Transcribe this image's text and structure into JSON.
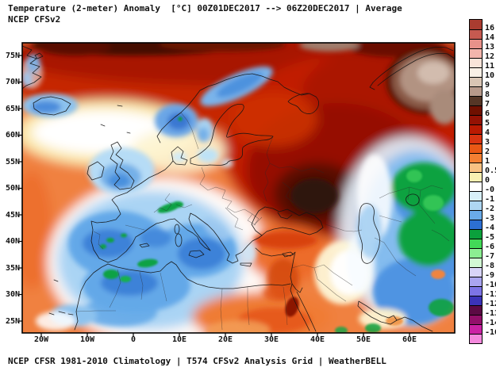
{
  "title": {
    "line1": "Temperature (2-meter) Anomaly  [°C] 00Z01DEC2017 --> 06Z20DEC2017 | Average",
    "line2": "NCEP CFSv2"
  },
  "caption": "NCEP CFSR 1981-2010 Climatology | T574 CFSv2 Analysis Grid | WeatherBELL",
  "colorbar": {
    "unit": "°C",
    "labels": [
      "16",
      "14",
      "13",
      "12",
      "11",
      "10",
      "9",
      "8",
      "7",
      "6",
      "5",
      "4",
      "3",
      "2",
      "1",
      "0.5",
      "0",
      "-0.5",
      "-1",
      "-2",
      "-3",
      "-4",
      "-5",
      "-6",
      "-7",
      "-8",
      "-9",
      "-10",
      "-11",
      "-12",
      "-13",
      "-14",
      "-16"
    ],
    "segments": [
      {
        "color": "#aa3c30",
        "dotted": true
      },
      {
        "color": "#c65a50",
        "dotted": true
      },
      {
        "color": "#e8928a",
        "dotted": false
      },
      {
        "color": "#f2b5ac",
        "dotted": true
      },
      {
        "color": "#f9e4d9",
        "dotted": false
      },
      {
        "color": "#f9f0e6",
        "dotted": true
      },
      {
        "color": "#d9c5b4",
        "dotted": true
      },
      {
        "color": "#b7998a",
        "dotted": false
      },
      {
        "color": "#553626",
        "dotted": false
      },
      {
        "color": "#6f1000",
        "dotted": false
      },
      {
        "color": "#941204",
        "dotted": false
      },
      {
        "color": "#ba1a02",
        "dotted": false
      },
      {
        "color": "#d93411",
        "dotted": false
      },
      {
        "color": "#e95815",
        "dotted": false
      },
      {
        "color": "#f37f33",
        "dotted": false
      },
      {
        "color": "#f8c183",
        "dotted": true
      },
      {
        "color": "#f9f0b2",
        "dotted": false
      },
      {
        "color": "#ffffff",
        "dotted": false
      },
      {
        "color": "#d8f0f8",
        "dotted": false
      },
      {
        "color": "#aed6f2",
        "dotted": false
      },
      {
        "color": "#6aabe8",
        "dotted": false
      },
      {
        "color": "#2c6fd2",
        "dotted": false
      },
      {
        "color": "#0ba03c",
        "dotted": false
      },
      {
        "color": "#42d957",
        "dotted": true
      },
      {
        "color": "#8cee92",
        "dotted": true
      },
      {
        "color": "#d2f8d4",
        "dotted": true
      },
      {
        "color": "#d8d4f8",
        "dotted": true
      },
      {
        "color": "#aaa5f0",
        "dotted": false
      },
      {
        "color": "#7d74e6",
        "dotted": true
      },
      {
        "color": "#3b33b8",
        "dotted": true
      },
      {
        "color": "#5c0a44",
        "dotted": true
      },
      {
        "color": "#930f6a",
        "dotted": false
      },
      {
        "color": "#cb22a4",
        "dotted": true
      },
      {
        "color": "#f489dd",
        "dotted": false
      }
    ]
  },
  "map": {
    "lat_labels": [
      "75N",
      "70N",
      "65N",
      "60N",
      "55N",
      "50N",
      "45N",
      "40N",
      "35N",
      "30N",
      "25N"
    ],
    "lon_labels": [
      "20W",
      "10W",
      "0",
      "10E",
      "20E",
      "30E",
      "40E",
      "50E",
      "60E"
    ]
  },
  "chart_data": {
    "type": "map",
    "title": "Temperature (2-meter) Anomaly [°C] 00Z01DEC2017 --> 06Z20DEC2017 | Average",
    "model": "NCEP CFSv2",
    "climatology": "NCEP CFSR 1981-2010",
    "grid": "T574 CFSv2 Analysis Grid",
    "source_brand": "WeatherBELL",
    "extent": {
      "lon": [
        "25W",
        "68E"
      ],
      "lat": [
        "23N",
        "78N"
      ]
    },
    "scale_range_c": [
      -16,
      16
    ],
    "anomaly_regions": [
      {
        "region": "Western Russia / Ukraine",
        "anomaly_c": "+5 to +8"
      },
      {
        "region": "Arctic / Novaya Zemlya (top right)",
        "anomaly_c": "+8 to +11"
      },
      {
        "region": "Arctic band along top edge",
        "anomaly_c": "+5 to +7"
      },
      {
        "region": "Central Europe / Balkans",
        "anomaly_c": "+1 to +3"
      },
      {
        "region": "Southern Norway",
        "anomaly_c": "-2 to -4"
      },
      {
        "region": "Iceland",
        "anomaly_c": "-1 to -3"
      },
      {
        "region": "British Isles",
        "anomaly_c": "-1 to -3"
      },
      {
        "region": "Iberia / NW Africa / W Mediterranean",
        "anomaly_c": "-2 to -4"
      },
      {
        "region": "Alps and Atlas mountains (spots)",
        "anomaly_c": "-4 to -5"
      },
      {
        "region": "Central Asia (Kazakhstan / Uzbekistan)",
        "anomaly_c": "-4 to -6"
      },
      {
        "region": "Iran / Persian Gulf / Arabian Sea",
        "anomaly_c": "-1 to -3"
      },
      {
        "region": "Levant / Egypt / Libya",
        "anomaly_c": "+2 to +5"
      },
      {
        "region": "Mid-Atlantic band 55-62N",
        "anomaly_c": "0 to +0.5"
      }
    ]
  }
}
